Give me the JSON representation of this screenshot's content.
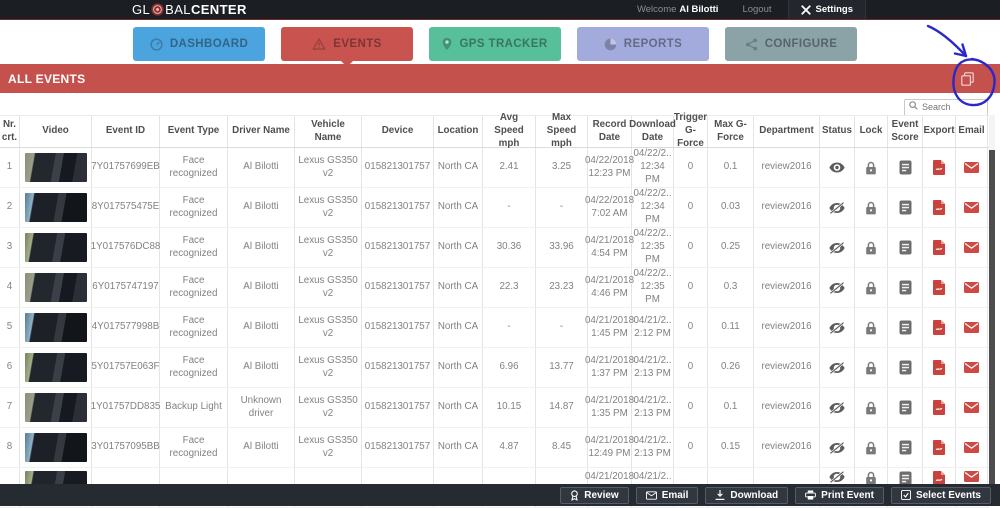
{
  "topbar": {
    "logo_gl": "GL",
    "logo_bal": "BAL",
    "logo_center": "CENTER",
    "welcome_label": "Welcome",
    "username": "Al Bilotti",
    "logout_label": "Logout",
    "settings_label": "Settings"
  },
  "nav": {
    "tabs": [
      {
        "label": "DASHBOARD",
        "icon": "gauge-icon",
        "color": "#4ba4de",
        "active": false
      },
      {
        "label": "EVENTS",
        "icon": "warning-triangle-icon",
        "color": "#c9534f",
        "active": true
      },
      {
        "label": "GPS TRACKER",
        "icon": "location-pin-icon",
        "color": "#57c09b",
        "active": false
      },
      {
        "label": "REPORTS",
        "icon": "pie-chart-icon",
        "color": "#a2abdc",
        "active": false
      },
      {
        "label": "CONFIGURE",
        "icon": "share-nodes-icon",
        "color": "#8ba2a7",
        "active": false
      }
    ]
  },
  "banner": {
    "title": "ALL EVENTS",
    "icon": "copy-events-icon",
    "color": "#c5514d"
  },
  "annotation": {
    "type": "hand-drawn-circle-and-arrow",
    "highlights": "copy-events-icon",
    "color": "#2b28c9"
  },
  "search": {
    "placeholder": "Search"
  },
  "table": {
    "columns": [
      "Nr. crt.",
      "Video",
      "Event ID",
      "Event Type",
      "Driver Name",
      "Vehicle Name",
      "Device",
      "Location",
      "Avg Speed mph",
      "Max Speed mph",
      "Record Date",
      "Download Date",
      "Trigger G-Force",
      "Max G-Force",
      "Department",
      "Status",
      "Lock",
      "Event Score",
      "Export",
      "Email"
    ],
    "row_icons": {
      "status_visible": "eye-icon",
      "status_hidden": "eye-slash-icon",
      "lock": "lock-icon",
      "score": "score-card-icon",
      "export": "pdf-file-icon",
      "email": "envelope-icon"
    },
    "rows": [
      {
        "nr": "1",
        "event_id": "7Y01757699EB",
        "event_type": "Face recognized",
        "driver": "Al Bilotti",
        "vehicle": "Lexus GS350 v2",
        "device": "015821301757",
        "location": "North CA",
        "avg": "2.41",
        "max": "3.25",
        "record": "04/22/2018 12:23 PM",
        "download": "04/22/2.. 12:34 PM",
        "trigger": "0",
        "maxg": "0.1",
        "dept": "review2016",
        "status": "visible",
        "partial": false
      },
      {
        "nr": "2",
        "event_id": "8Y017575475E",
        "event_type": "Face recognized",
        "driver": "Al Bilotti",
        "vehicle": "Lexus GS350 v2",
        "device": "015821301757",
        "location": "North CA",
        "avg": "-",
        "max": "-",
        "record": "04/22/2018 7:02 AM",
        "download": "04/22/2.. 12:34 PM",
        "trigger": "0",
        "maxg": "0.03",
        "dept": "review2016",
        "status": "hidden",
        "partial": false
      },
      {
        "nr": "3",
        "event_id": "1Y017576DC88",
        "event_type": "Face recognized",
        "driver": "Al Bilotti",
        "vehicle": "Lexus GS350 v2",
        "device": "015821301757",
        "location": "North CA",
        "avg": "30.36",
        "max": "33.96",
        "record": "04/21/2018 4:54 PM",
        "download": "04/22/2.. 12:35 PM",
        "trigger": "0",
        "maxg": "0.25",
        "dept": "review2016",
        "status": "hidden",
        "partial": false
      },
      {
        "nr": "4",
        "event_id": "6Y0175747197",
        "event_type": "Face recognized",
        "driver": "Al Bilotti",
        "vehicle": "Lexus GS350 v2",
        "device": "015821301757",
        "location": "North CA",
        "avg": "22.3",
        "max": "23.23",
        "record": "04/21/2018 4:46 PM",
        "download": "04/22/2.. 12:35 PM",
        "trigger": "0",
        "maxg": "0.3",
        "dept": "review2016",
        "status": "hidden",
        "partial": false
      },
      {
        "nr": "5",
        "event_id": "4Y017577998B",
        "event_type": "Face recognized",
        "driver": "Al Bilotti",
        "vehicle": "Lexus GS350 v2",
        "device": "015821301757",
        "location": "North CA",
        "avg": "-",
        "max": "-",
        "record": "04/21/2018 1:45 PM",
        "download": "04/21/2.. 2:12 PM",
        "trigger": "0",
        "maxg": "0.11",
        "dept": "review2016",
        "status": "hidden",
        "partial": false
      },
      {
        "nr": "6",
        "event_id": "5Y01757E063F",
        "event_type": "Face recognized",
        "driver": "Al Bilotti",
        "vehicle": "Lexus GS350 v2",
        "device": "015821301757",
        "location": "North CA",
        "avg": "6.96",
        "max": "13.77",
        "record": "04/21/2018 1:37 PM",
        "download": "04/21/2.. 2:13 PM",
        "trigger": "0",
        "maxg": "0.26",
        "dept": "review2016",
        "status": "hidden",
        "partial": false
      },
      {
        "nr": "7",
        "event_id": "1Y01757DD835",
        "event_type": "Backup Light",
        "driver": "Unknown driver",
        "vehicle": "Lexus GS350 v2",
        "device": "015821301757",
        "location": "North CA",
        "avg": "10.15",
        "max": "14.87",
        "record": "04/21/2018 1:35 PM",
        "download": "04/21/2.. 2:13 PM",
        "trigger": "0",
        "maxg": "0.1",
        "dept": "review2016",
        "status": "hidden",
        "partial": false
      },
      {
        "nr": "8",
        "event_id": "3Y01757095BB",
        "event_type": "Face recognized",
        "driver": "Al Bilotti",
        "vehicle": "Lexus GS350 v2",
        "device": "015821301757",
        "location": "North CA",
        "avg": "4.87",
        "max": "8.45",
        "record": "04/21/2018 12:49 PM",
        "download": "04/21/2.. 2:13 PM",
        "trigger": "0",
        "maxg": "0.15",
        "dept": "review2016",
        "status": "hidden",
        "partial": false
      },
      {
        "nr": "",
        "event_id": "",
        "event_type": "",
        "driver": "",
        "vehicle": "",
        "device": "",
        "location": "",
        "avg": "",
        "max": "",
        "record": "04/21/2018",
        "download": "04/21/2..",
        "trigger": "",
        "maxg": "",
        "dept": "",
        "status": "hidden",
        "partial": true
      }
    ]
  },
  "footer": {
    "buttons": [
      {
        "label": "Review",
        "icon": "badge-icon"
      },
      {
        "label": "Email",
        "icon": "envelope-icon"
      },
      {
        "label": "Download",
        "icon": "download-icon"
      },
      {
        "label": "Print Event",
        "icon": "printer-icon"
      },
      {
        "label": "Select Events",
        "icon": "checkbox-icon"
      }
    ]
  }
}
